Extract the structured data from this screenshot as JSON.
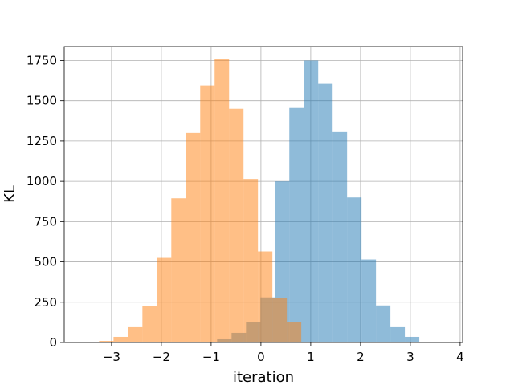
{
  "chart_data": {
    "type": "bar",
    "subtype": "overlapping-histogram",
    "title": "",
    "xlabel": "iteration",
    "ylabel": "KL",
    "xlim": [
      -3.95,
      4.05
    ],
    "ylim": [
      0,
      1837
    ],
    "xticks": [
      -3,
      -2,
      -1,
      0,
      1,
      2,
      3,
      4
    ],
    "xtick_labels": [
      "−3",
      "−2",
      "−1",
      "0",
      "1",
      "2",
      "3",
      "4"
    ],
    "yticks": [
      0,
      250,
      500,
      750,
      1000,
      1250,
      1500,
      1750
    ],
    "ytick_labels": [
      "0",
      "250",
      "500",
      "750",
      "1000",
      "1250",
      "1500",
      "1750"
    ],
    "grid": true,
    "legend": "none",
    "series": [
      {
        "color": "#1f77b4",
        "alpha": 0.5,
        "bin_width": 0.29,
        "bin_left_edges": [
          -0.88,
          -0.59,
          -0.3,
          -0.01,
          0.28,
          0.57,
          0.86,
          1.15,
          1.44,
          1.73,
          2.02,
          2.31,
          2.6,
          2.89
        ],
        "values": [
          20,
          60,
          125,
          280,
          1000,
          1455,
          1750,
          1605,
          1310,
          900,
          515,
          230,
          95,
          35
        ]
      },
      {
        "color": "#ff7f0e",
        "alpha": 0.5,
        "bin_width": 0.29,
        "bin_left_edges": [
          -3.25,
          -2.96,
          -2.67,
          -2.38,
          -2.09,
          -1.8,
          -1.51,
          -1.22,
          -0.93,
          -0.64,
          -0.35,
          -0.06,
          0.23,
          0.52
        ],
        "values": [
          10,
          35,
          95,
          225,
          525,
          895,
          1300,
          1595,
          1760,
          1450,
          1015,
          565,
          275,
          125
        ]
      }
    ]
  }
}
